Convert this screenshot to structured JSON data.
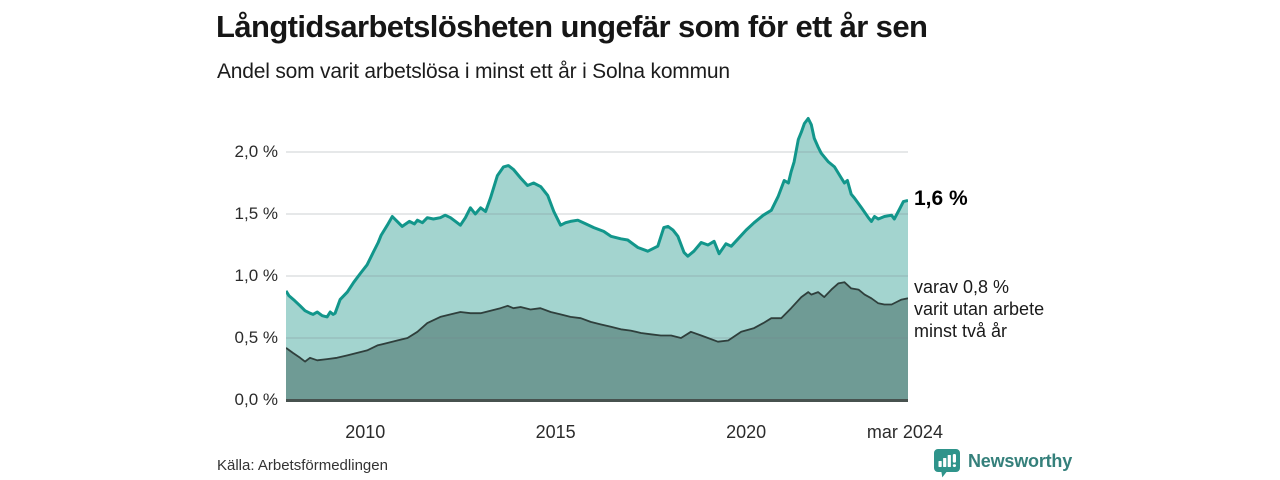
{
  "header": {
    "title": "Långtidsarbetslösheten ungefär som för ett år sen",
    "subtitle": "Andel som varit arbetslösa i minst ett år i Solna kommun"
  },
  "chart_data": {
    "type": "area",
    "title": "Långtidsarbetslösheten ungefär som för ett år sen",
    "subtitle": "Andel som varit arbetslösa i minst ett år i Solna kommun",
    "unit": "%",
    "x_range": [
      2007.92,
      2024.25
    ],
    "ylim": [
      0,
      2.0
    ],
    "grid": true,
    "legend_position": "right-annotations",
    "x_ticks": [
      {
        "label": "2010",
        "t": 2010
      },
      {
        "label": "2015",
        "t": 2015
      },
      {
        "label": "2020",
        "t": 2020
      },
      {
        "label": "mar 2024",
        "t": 2024.17
      }
    ],
    "y_ticks": [
      {
        "label": "0,0 %",
        "v": 0
      },
      {
        "label": "0,5 %",
        "v": 0.5
      },
      {
        "label": "1,0 %",
        "v": 1.0
      },
      {
        "label": "1,5 %",
        "v": 1.5
      },
      {
        "label": "2,0 %",
        "v": 2.0
      }
    ],
    "series": [
      {
        "name": "Andel arbetslösa minst ett år",
        "latest_value": 1.6,
        "line_color": "#12968b",
        "fill_color": "#a3d4cf",
        "points": [
          [
            2007.92,
            0.88
          ],
          [
            2008.0,
            0.84
          ],
          [
            2008.15,
            0.8
          ],
          [
            2008.29,
            0.76
          ],
          [
            2008.42,
            0.72
          ],
          [
            2008.55,
            0.7
          ],
          [
            2008.63,
            0.69
          ],
          [
            2008.74,
            0.71
          ],
          [
            2008.87,
            0.68
          ],
          [
            2009.0,
            0.67
          ],
          [
            2009.08,
            0.71
          ],
          [
            2009.16,
            0.69
          ],
          [
            2009.21,
            0.7
          ],
          [
            2009.34,
            0.81
          ],
          [
            2009.53,
            0.87
          ],
          [
            2009.7,
            0.95
          ],
          [
            2009.87,
            1.02
          ],
          [
            2010.05,
            1.09
          ],
          [
            2010.21,
            1.19
          ],
          [
            2010.34,
            1.27
          ],
          [
            2010.42,
            1.33
          ],
          [
            2010.58,
            1.41
          ],
          [
            2010.71,
            1.48
          ],
          [
            2010.84,
            1.44
          ],
          [
            2010.97,
            1.4
          ],
          [
            2011.16,
            1.44
          ],
          [
            2011.29,
            1.42
          ],
          [
            2011.37,
            1.45
          ],
          [
            2011.5,
            1.43
          ],
          [
            2011.63,
            1.47
          ],
          [
            2011.79,
            1.46
          ],
          [
            2011.97,
            1.47
          ],
          [
            2012.1,
            1.49
          ],
          [
            2012.24,
            1.47
          ],
          [
            2012.37,
            1.44
          ],
          [
            2012.5,
            1.41
          ],
          [
            2012.63,
            1.47
          ],
          [
            2012.76,
            1.55
          ],
          [
            2012.89,
            1.5
          ],
          [
            2013.03,
            1.55
          ],
          [
            2013.16,
            1.52
          ],
          [
            2013.29,
            1.63
          ],
          [
            2013.47,
            1.81
          ],
          [
            2013.63,
            1.88
          ],
          [
            2013.76,
            1.89
          ],
          [
            2013.89,
            1.86
          ],
          [
            2014.08,
            1.79
          ],
          [
            2014.26,
            1.73
          ],
          [
            2014.42,
            1.75
          ],
          [
            2014.61,
            1.72
          ],
          [
            2014.79,
            1.65
          ],
          [
            2014.95,
            1.52
          ],
          [
            2015.13,
            1.41
          ],
          [
            2015.26,
            1.43
          ],
          [
            2015.39,
            1.44
          ],
          [
            2015.58,
            1.45
          ],
          [
            2015.79,
            1.42
          ],
          [
            2016.0,
            1.39
          ],
          [
            2016.26,
            1.36
          ],
          [
            2016.45,
            1.32
          ],
          [
            2016.71,
            1.3
          ],
          [
            2016.89,
            1.29
          ],
          [
            2017.16,
            1.23
          ],
          [
            2017.42,
            1.2
          ],
          [
            2017.68,
            1.24
          ],
          [
            2017.84,
            1.39
          ],
          [
            2017.95,
            1.4
          ],
          [
            2018.08,
            1.37
          ],
          [
            2018.21,
            1.32
          ],
          [
            2018.37,
            1.19
          ],
          [
            2018.47,
            1.16
          ],
          [
            2018.63,
            1.2
          ],
          [
            2018.82,
            1.27
          ],
          [
            2019.0,
            1.25
          ],
          [
            2019.16,
            1.28
          ],
          [
            2019.29,
            1.18
          ],
          [
            2019.47,
            1.26
          ],
          [
            2019.61,
            1.24
          ],
          [
            2019.79,
            1.3
          ],
          [
            2020.0,
            1.37
          ],
          [
            2020.21,
            1.43
          ],
          [
            2020.45,
            1.49
          ],
          [
            2020.66,
            1.53
          ],
          [
            2020.84,
            1.64
          ],
          [
            2021.0,
            1.77
          ],
          [
            2021.11,
            1.75
          ],
          [
            2021.18,
            1.84
          ],
          [
            2021.26,
            1.92
          ],
          [
            2021.37,
            2.1
          ],
          [
            2021.45,
            2.16
          ],
          [
            2021.53,
            2.23
          ],
          [
            2021.63,
            2.27
          ],
          [
            2021.71,
            2.22
          ],
          [
            2021.79,
            2.11
          ],
          [
            2021.89,
            2.04
          ],
          [
            2021.97,
            1.99
          ],
          [
            2022.16,
            1.92
          ],
          [
            2022.32,
            1.88
          ],
          [
            2022.5,
            1.79
          ],
          [
            2022.58,
            1.75
          ],
          [
            2022.66,
            1.77
          ],
          [
            2022.76,
            1.66
          ],
          [
            2022.84,
            1.63
          ],
          [
            2023.03,
            1.55
          ],
          [
            2023.21,
            1.47
          ],
          [
            2023.29,
            1.44
          ],
          [
            2023.37,
            1.48
          ],
          [
            2023.47,
            1.46
          ],
          [
            2023.63,
            1.48
          ],
          [
            2023.82,
            1.49
          ],
          [
            2023.89,
            1.46
          ],
          [
            2024.03,
            1.54
          ],
          [
            2024.13,
            1.6
          ],
          [
            2024.25,
            1.61
          ]
        ]
      },
      {
        "name": "varav utan arbete minst två år",
        "latest_value": 0.8,
        "line_color": "#2f3f3c",
        "fill_color": "#6f9b95",
        "points": [
          [
            2007.92,
            0.42
          ],
          [
            2008.1,
            0.38
          ],
          [
            2008.29,
            0.34
          ],
          [
            2008.42,
            0.31
          ],
          [
            2008.55,
            0.34
          ],
          [
            2008.74,
            0.32
          ],
          [
            2009.0,
            0.33
          ],
          [
            2009.26,
            0.34
          ],
          [
            2009.53,
            0.36
          ],
          [
            2009.79,
            0.38
          ],
          [
            2010.05,
            0.4
          ],
          [
            2010.32,
            0.44
          ],
          [
            2010.58,
            0.46
          ],
          [
            2010.84,
            0.48
          ],
          [
            2011.11,
            0.5
          ],
          [
            2011.37,
            0.55
          ],
          [
            2011.63,
            0.62
          ],
          [
            2011.97,
            0.67
          ],
          [
            2012.24,
            0.69
          ],
          [
            2012.5,
            0.71
          ],
          [
            2012.76,
            0.7
          ],
          [
            2013.03,
            0.7
          ],
          [
            2013.29,
            0.72
          ],
          [
            2013.55,
            0.74
          ],
          [
            2013.74,
            0.76
          ],
          [
            2013.89,
            0.74
          ],
          [
            2014.08,
            0.75
          ],
          [
            2014.34,
            0.73
          ],
          [
            2014.6,
            0.74
          ],
          [
            2014.87,
            0.71
          ],
          [
            2015.13,
            0.69
          ],
          [
            2015.39,
            0.67
          ],
          [
            2015.66,
            0.66
          ],
          [
            2015.92,
            0.63
          ],
          [
            2016.18,
            0.61
          ],
          [
            2016.45,
            0.59
          ],
          [
            2016.71,
            0.57
          ],
          [
            2016.97,
            0.56
          ],
          [
            2017.24,
            0.54
          ],
          [
            2017.5,
            0.53
          ],
          [
            2017.76,
            0.52
          ],
          [
            2018.03,
            0.52
          ],
          [
            2018.29,
            0.5
          ],
          [
            2018.55,
            0.55
          ],
          [
            2018.82,
            0.52
          ],
          [
            2019.0,
            0.5
          ],
          [
            2019.26,
            0.47
          ],
          [
            2019.53,
            0.48
          ],
          [
            2019.87,
            0.55
          ],
          [
            2020.21,
            0.58
          ],
          [
            2020.45,
            0.62
          ],
          [
            2020.66,
            0.66
          ],
          [
            2020.92,
            0.66
          ],
          [
            2021.18,
            0.74
          ],
          [
            2021.45,
            0.83
          ],
          [
            2021.63,
            0.87
          ],
          [
            2021.71,
            0.85
          ],
          [
            2021.89,
            0.87
          ],
          [
            2022.05,
            0.83
          ],
          [
            2022.24,
            0.89
          ],
          [
            2022.42,
            0.94
          ],
          [
            2022.58,
            0.95
          ],
          [
            2022.76,
            0.9
          ],
          [
            2022.95,
            0.89
          ],
          [
            2023.11,
            0.85
          ],
          [
            2023.29,
            0.82
          ],
          [
            2023.47,
            0.78
          ],
          [
            2023.63,
            0.77
          ],
          [
            2023.82,
            0.77
          ],
          [
            2023.95,
            0.79
          ],
          [
            2024.08,
            0.81
          ],
          [
            2024.25,
            0.82
          ]
        ]
      }
    ]
  },
  "annotations": {
    "latest_total": "1,6 %",
    "subset_lines": [
      "varav 0,8 %",
      "varit utan arbete",
      "minst två år"
    ]
  },
  "footer": {
    "source": "Källa: Arbetsförmedlingen",
    "brand": "Newsworthy"
  },
  "colors": {
    "accent_teal": "#12968b",
    "light_fill": "#a3d4cf",
    "dark_fill": "#6f9b95",
    "dark_line": "#2f3f3c",
    "axis_line": "#47524f",
    "gridline": "rgba(120,132,140,0.38)",
    "brand_teal": "#2f948b",
    "brand_text": "#35807b"
  }
}
